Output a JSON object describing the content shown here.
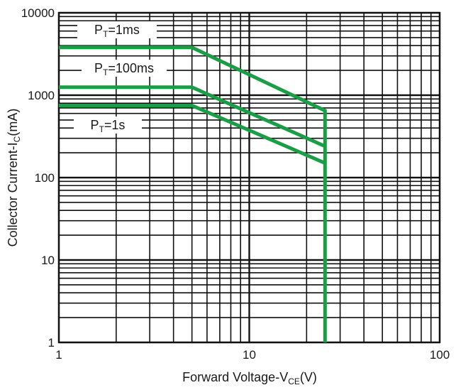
{
  "chart_data": {
    "type": "line",
    "x_scale": "log",
    "y_scale": "log",
    "xlim": [
      1,
      100
    ],
    "ylim": [
      1,
      10000
    ],
    "grid": true,
    "x_ticks": [
      "1",
      "10",
      "100"
    ],
    "y_ticks": [
      "1",
      "10",
      "100",
      "1000",
      "10000"
    ],
    "xlabel": {
      "main": "Forward Voltage-V",
      "sub": "CE",
      "tail": "(V)"
    },
    "ylabel": {
      "main": "Collector Current-I",
      "sub": "C",
      "tail": "(mA)"
    },
    "line_color": "#1a9e45",
    "series": [
      {
        "name": "PT=1ms",
        "label": {
          "main": "P",
          "sub": "T",
          "tail": "=1ms"
        },
        "x": [
          1,
          5,
          25,
          25
        ],
        "y": [
          3800,
          3800,
          650,
          1
        ]
      },
      {
        "name": "PT=100ms",
        "label": {
          "main": "P",
          "sub": "T",
          "tail": "=100ms"
        },
        "x": [
          1,
          5,
          25
        ],
        "y": [
          1250,
          1250,
          240
        ]
      },
      {
        "name": "PT=1s",
        "label": {
          "main": "P",
          "sub": "T",
          "tail": "=1s"
        },
        "x": [
          1,
          5,
          25
        ],
        "y": [
          750,
          750,
          150
        ]
      }
    ]
  }
}
